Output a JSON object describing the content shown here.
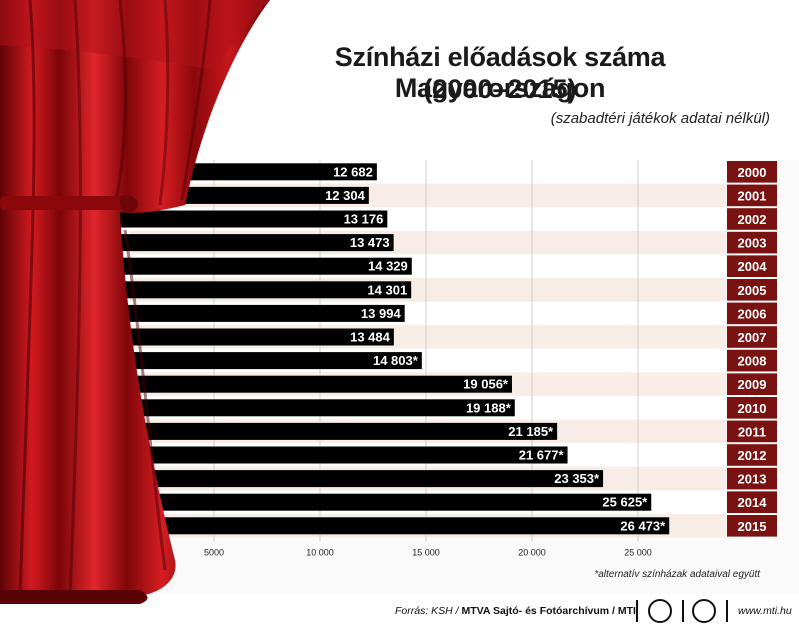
{
  "title_line1": "Színházi előadások száma Magyarországon",
  "title_line2": "(2000–2015)",
  "subtitle": "(szabadtéri játékok adatai nélkül)",
  "footnote": "*alternatív színházak adataival együtt",
  "source": {
    "prefix": "Forrás: KSH / ",
    "bold": "MTVA Sajtó- és Fotóarchívum / MTI",
    "site": "www.mti.hu"
  },
  "colors": {
    "bar": "#000000",
    "year_box": "#7a1212",
    "row_band_light": "#f7ece6",
    "row_band_white": "#ffffff",
    "curtain": "#c0151a"
  },
  "chart_data": {
    "type": "bar",
    "orientation": "horizontal",
    "categories": [
      "2000",
      "2001",
      "2002",
      "2003",
      "2004",
      "2005",
      "2006",
      "2007",
      "2008",
      "2009",
      "2010",
      "2011",
      "2012",
      "2013",
      "2014",
      "2015"
    ],
    "values": [
      12682,
      12304,
      13176,
      13473,
      14329,
      14301,
      13994,
      13484,
      14803,
      19056,
      19188,
      21185,
      21677,
      23353,
      25625,
      26473
    ],
    "value_labels": [
      "12 682",
      "12 304",
      "13 176",
      "13 473",
      "14 329",
      "14 301",
      "13 994",
      "13 484",
      "14 803*",
      "19 056*",
      "19 188*",
      "21 185*",
      "21 677*",
      "23 353*",
      "25 625*",
      "26 473*"
    ],
    "x_ticks": [
      5000,
      10000,
      15000,
      20000,
      25000
    ],
    "x_tick_labels": [
      "5000",
      "10 000",
      "15 000",
      "20 000",
      "25 000"
    ],
    "grid": true,
    "legend": "none"
  }
}
